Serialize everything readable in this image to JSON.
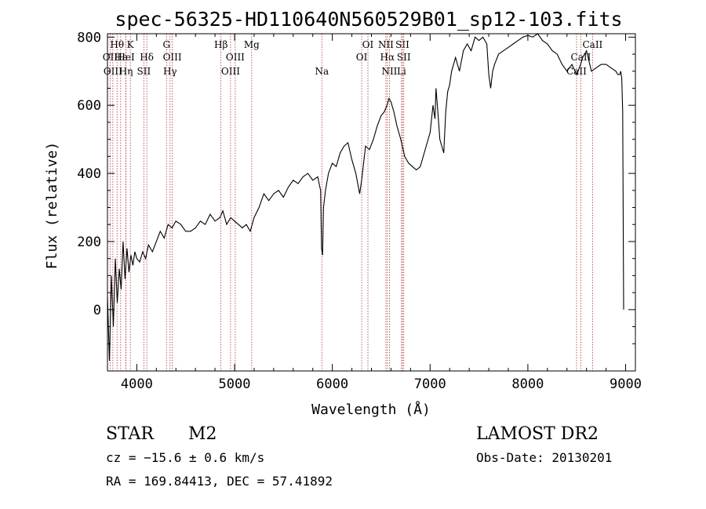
{
  "chart_data": {
    "type": "line",
    "title": "spec-56325-HD110640N560529B01_sp12-103.fits",
    "xlabel": "Wavelength (Å)",
    "ylabel": "Flux (relative)",
    "xlim": [
      3700,
      9100
    ],
    "ylim": [
      -180,
      810
    ],
    "xticks": [
      4000,
      5000,
      6000,
      7000,
      8000,
      9000
    ],
    "yticks": [
      0,
      200,
      400,
      600,
      800
    ],
    "grid": false,
    "series": [
      {
        "x": [
          3700,
          3720,
          3740,
          3760,
          3780,
          3800,
          3820,
          3840,
          3860,
          3880,
          3900,
          3920,
          3940,
          3960,
          3980,
          4000,
          4030,
          4060,
          4090,
          4120,
          4160,
          4200,
          4240,
          4280,
          4320,
          4360,
          4400,
          4450,
          4500,
          4550,
          4600,
          4650,
          4700,
          4750,
          4800,
          4850,
          4880,
          4920,
          4960,
          5000,
          5040,
          5080,
          5120,
          5160,
          5200,
          5250,
          5300,
          5350,
          5400,
          5450,
          5500,
          5550,
          5600,
          5650,
          5700,
          5750,
          5800,
          5850,
          5880,
          5890,
          5900,
          5910,
          5930,
          5960,
          6000,
          6040,
          6080,
          6120,
          6160,
          6200,
          6240,
          6280,
          6300,
          6340,
          6380,
          6420,
          6460,
          6500,
          6530,
          6560,
          6580,
          6600,
          6630,
          6660,
          6700,
          6740,
          6780,
          6820,
          6860,
          6900,
          6940,
          6980,
          7000,
          7030,
          7050,
          7060,
          7080,
          7100,
          7140,
          7160,
          7180,
          7200,
          7220,
          7260,
          7300,
          7340,
          7380,
          7420,
          7460,
          7500,
          7540,
          7580,
          7600,
          7620,
          7640,
          7660,
          7700,
          7750,
          7800,
          7850,
          7900,
          7950,
          8000,
          8050,
          8100,
          8150,
          8200,
          8250,
          8300,
          8350,
          8400,
          8450,
          8500,
          8540,
          8560,
          8600,
          8650,
          8700,
          8750,
          8800,
          8850,
          8900,
          8920,
          8940,
          8950,
          8960,
          8970,
          8980
        ],
        "y": [
          40,
          -150,
          100,
          -50,
          150,
          20,
          120,
          60,
          200,
          90,
          180,
          110,
          160,
          130,
          170,
          150,
          140,
          170,
          150,
          190,
          170,
          200,
          230,
          210,
          250,
          240,
          260,
          250,
          230,
          230,
          240,
          260,
          250,
          280,
          260,
          270,
          290,
          250,
          270,
          260,
          250,
          240,
          250,
          230,
          270,
          300,
          340,
          320,
          340,
          350,
          330,
          360,
          380,
          370,
          390,
          400,
          380,
          390,
          350,
          180,
          160,
          300,
          350,
          400,
          430,
          420,
          460,
          480,
          490,
          440,
          400,
          340,
          380,
          480,
          470,
          500,
          540,
          570,
          580,
          600,
          620,
          610,
          580,
          540,
          500,
          450,
          430,
          420,
          410,
          420,
          460,
          500,
          520,
          600,
          560,
          650,
          580,
          500,
          460,
          580,
          640,
          660,
          700,
          740,
          700,
          760,
          780,
          760,
          800,
          790,
          800,
          780,
          690,
          650,
          700,
          720,
          750,
          760,
          770,
          780,
          790,
          800,
          805,
          800,
          810,
          790,
          780,
          760,
          750,
          720,
          700,
          720,
          690,
          720,
          740,
          760,
          700,
          710,
          720,
          720,
          710,
          700,
          690,
          690,
          700,
          680,
          580,
          0
        ]
      }
    ],
    "spectral_lines": [
      {
        "name": "Hθ",
        "wavelength": 3798,
        "row": 1
      },
      {
        "name": "OII",
        "wavelength": 3727,
        "row": 2
      },
      {
        "name": "OIII",
        "wavelength": 3755,
        "row": 3
      },
      {
        "name": "K",
        "wavelength": 3934,
        "row": 1
      },
      {
        "name": "Hε",
        "wavelength": 3835,
        "row": 2
      },
      {
        "name": "Hη",
        "wavelength": 3889,
        "row": 3
      },
      {
        "name": "HeI",
        "wavelength": 3889,
        "row": 2
      },
      {
        "name": "Hδ",
        "wavelength": 4102,
        "row": 2
      },
      {
        "name": "SII",
        "wavelength": 4072,
        "row": 3
      },
      {
        "name": "G",
        "wavelength": 4304,
        "row": 1
      },
      {
        "name": "OIII",
        "wavelength": 4363,
        "row": 2
      },
      {
        "name": "Hγ",
        "wavelength": 4340,
        "row": 3
      },
      {
        "name": "Hβ",
        "wavelength": 4861,
        "row": 1
      },
      {
        "name": "OIII",
        "wavelength": 5007,
        "row": 2
      },
      {
        "name": "OIII",
        "wavelength": 4959,
        "row": 3
      },
      {
        "name": "Mg",
        "wavelength": 5175,
        "row": 1
      },
      {
        "name": "Na",
        "wavelength": 5893,
        "row": 3
      },
      {
        "name": "OI",
        "wavelength": 6364,
        "row": 1
      },
      {
        "name": "OI",
        "wavelength": 6300,
        "row": 2
      },
      {
        "name": "NII",
        "wavelength": 6548,
        "row": 1
      },
      {
        "name": "SII",
        "wavelength": 6717,
        "row": 1
      },
      {
        "name": "Hα",
        "wavelength": 6563,
        "row": 2
      },
      {
        "name": "SII",
        "wavelength": 6731,
        "row": 2
      },
      {
        "name": "NII",
        "wavelength": 6584,
        "row": 3
      },
      {
        "name": "Li",
        "wavelength": 6708,
        "row": 3
      },
      {
        "name": "CaII",
        "wavelength": 8662,
        "row": 1
      },
      {
        "name": "CaII",
        "wavelength": 8542,
        "row": 2
      },
      {
        "name": "CaII",
        "wavelength": 8498,
        "row": 3
      }
    ]
  },
  "info": {
    "object_type": "STAR",
    "subclass": "M2",
    "survey": "LAMOST DR2",
    "redshift": "cz = −15.6 ± 0.6 km/s",
    "obs_date": "Obs-Date: 20130201",
    "coords": "RA = 169.84413, DEC =  57.41892"
  }
}
